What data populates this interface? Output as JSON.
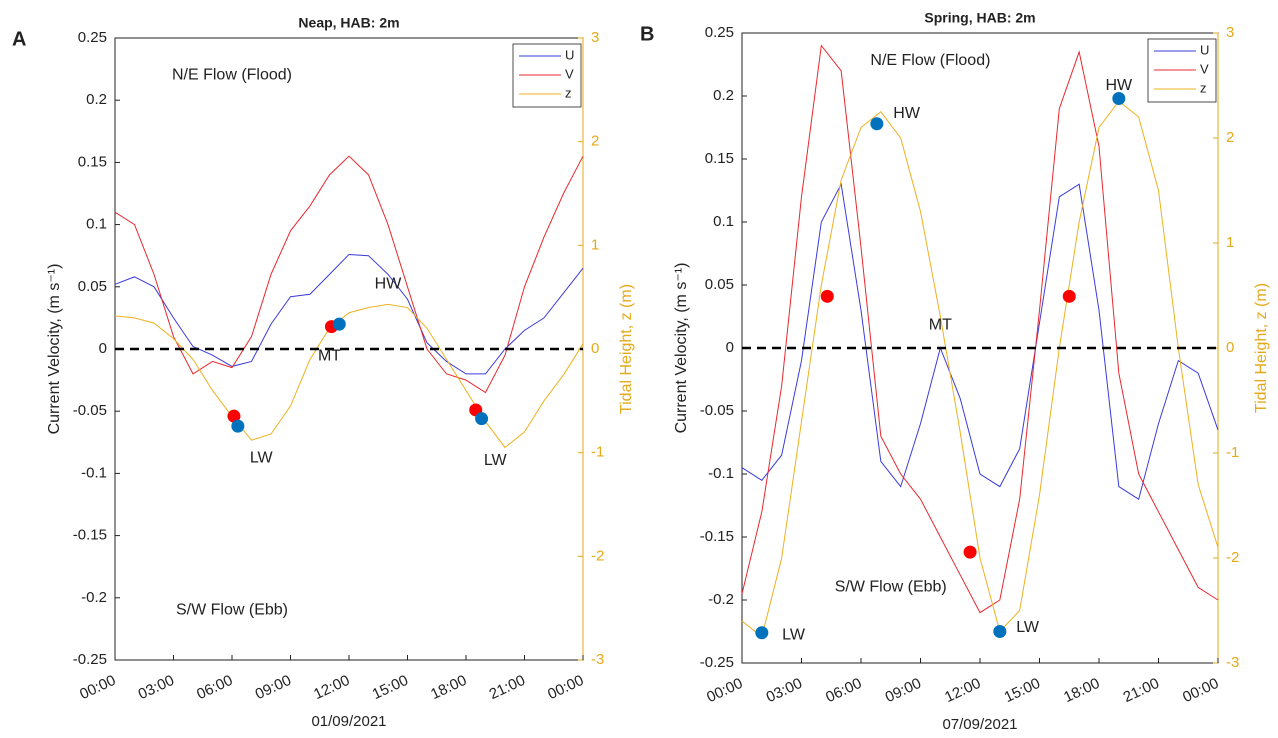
{
  "chart_data": [
    {
      "type": "line",
      "panel": "A",
      "title": "Neap, HAB: 2m",
      "xlabel": "01/09/2021",
      "ylabel": "Current Velocity, (m s⁻¹)",
      "y2label": "Tidal Height, z (m)",
      "x": [
        0,
        1,
        2,
        3,
        4,
        5,
        6,
        7,
        8,
        9,
        10,
        11,
        12,
        13,
        14,
        15,
        16,
        17,
        18,
        19,
        20,
        21,
        22,
        23,
        24
      ],
      "xlim": [
        0,
        24
      ],
      "xticks": [
        {
          "value": 0,
          "label": "00:00"
        },
        {
          "value": 3,
          "label": "03:00"
        },
        {
          "value": 6,
          "label": "06:00"
        },
        {
          "value": 9,
          "label": "09:00"
        },
        {
          "value": 12,
          "label": "12:00"
        },
        {
          "value": 15,
          "label": "15:00"
        },
        {
          "value": 18,
          "label": "18:00"
        },
        {
          "value": 21,
          "label": "21:00"
        },
        {
          "value": 24,
          "label": "00:00"
        }
      ],
      "ylim": [
        -0.25,
        0.25
      ],
      "yticks": [
        -0.25,
        -0.2,
        -0.15,
        -0.1,
        -0.05,
        0,
        0.05,
        0.1,
        0.15,
        0.2,
        0.25
      ],
      "y2lim": [
        -3,
        3
      ],
      "y2ticks": [
        -3,
        -2,
        -1,
        0,
        1,
        2,
        3
      ],
      "y2color": "#e5a919",
      "legend": "upper right",
      "zero_line": true,
      "series": [
        {
          "name": "U",
          "color": "#3b3bdc",
          "values": [
            0.052,
            0.058,
            0.05,
            0.025,
            0.002,
            -0.005,
            -0.014,
            -0.01,
            0.02,
            0.042,
            0.044,
            0.06,
            0.076,
            0.075,
            0.06,
            0.04,
            0.005,
            -0.01,
            -0.02,
            -0.02,
            0,
            0.015,
            0.025,
            0.045,
            0.065
          ]
        },
        {
          "name": "V",
          "color": "#e8282d",
          "values": [
            0.11,
            0.1,
            0.06,
            0.01,
            -0.02,
            -0.01,
            -0.015,
            0.01,
            0.06,
            0.095,
            0.115,
            0.14,
            0.155,
            0.14,
            0.1,
            0.05,
            0,
            -0.02,
            -0.025,
            -0.035,
            -0.005,
            0.05,
            0.09,
            0.125,
            0.155
          ]
        },
        {
          "name": "z",
          "color": "#edb120",
          "axis": "y2",
          "values": [
            0.32,
            0.3,
            0.25,
            0.1,
            -0.1,
            -0.4,
            -0.65,
            -0.88,
            -0.82,
            -0.55,
            -0.1,
            0.2,
            0.35,
            0.4,
            0.43,
            0.4,
            0.2,
            -0.1,
            -0.4,
            -0.7,
            -0.95,
            -0.8,
            -0.5,
            -0.25,
            0.05
          ]
        }
      ],
      "markers": [
        {
          "x": 6.1,
          "y": -0.054,
          "color": "#ff0000"
        },
        {
          "x": 6.3,
          "y": -0.062,
          "color": "#0072bd"
        },
        {
          "x": 11.1,
          "y": 0.018,
          "color": "#ff0000"
        },
        {
          "x": 11.5,
          "y": 0.02,
          "color": "#0072bd"
        },
        {
          "x": 18.5,
          "y": -0.049,
          "color": "#ff0000"
        },
        {
          "x": 18.8,
          "y": -0.056,
          "color": "#0072bd"
        }
      ],
      "annotations": [
        {
          "text": "LW",
          "x": 7.5,
          "y": -0.088
        },
        {
          "text": "MT",
          "x": 11,
          "y": -0.006
        },
        {
          "text": "HW",
          "x": 14,
          "y": 0.052
        },
        {
          "text": "LW",
          "x": 19.5,
          "y": -0.09
        },
        {
          "text": "N/E Flow (Flood)",
          "x": 6,
          "y": 0.22
        },
        {
          "text": "S/W Flow (Ebb)",
          "x": 6,
          "y": -0.21
        }
      ]
    },
    {
      "type": "line",
      "panel": "B",
      "title": "Spring, HAB: 2m",
      "xlabel": "07/09/2021",
      "ylabel": "Current Velocity, (m s⁻¹)",
      "y2label": "Tidal Height, z (m)",
      "x": [
        0,
        1,
        2,
        3,
        4,
        5,
        6,
        7,
        8,
        9,
        10,
        11,
        12,
        13,
        14,
        15,
        16,
        17,
        18,
        19,
        20,
        21,
        22,
        23,
        24
      ],
      "xlim": [
        0,
        24
      ],
      "xticks": [
        {
          "value": 0,
          "label": "00:00"
        },
        {
          "value": 3,
          "label": "03:00"
        },
        {
          "value": 6,
          "label": "06:00"
        },
        {
          "value": 9,
          "label": "09:00"
        },
        {
          "value": 12,
          "label": "12:00"
        },
        {
          "value": 15,
          "label": "15:00"
        },
        {
          "value": 18,
          "label": "18:00"
        },
        {
          "value": 21,
          "label": "21:00"
        },
        {
          "value": 24,
          "label": "00:00"
        }
      ],
      "ylim": [
        -0.25,
        0.25
      ],
      "yticks": [
        -0.25,
        -0.2,
        -0.15,
        -0.1,
        -0.05,
        0,
        0.05,
        0.1,
        0.15,
        0.2,
        0.25
      ],
      "y2lim": [
        -3,
        3
      ],
      "y2ticks": [
        -3,
        -2,
        -1,
        0,
        1,
        2,
        3
      ],
      "y2color": "#e5a919",
      "legend": "upper right",
      "zero_line": true,
      "series": [
        {
          "name": "U",
          "color": "#3b3bdc",
          "values": [
            -0.095,
            -0.105,
            -0.085,
            -0.01,
            0.1,
            0.13,
            0.03,
            -0.09,
            -0.11,
            -0.06,
            0,
            -0.04,
            -0.1,
            -0.11,
            -0.08,
            0.02,
            0.12,
            0.13,
            0.03,
            -0.11,
            -0.12,
            -0.06,
            -0.01,
            -0.02,
            -0.065
          ]
        },
        {
          "name": "V",
          "color": "#e8282d",
          "values": [
            -0.195,
            -0.13,
            -0.03,
            0.12,
            0.24,
            0.22,
            0.08,
            -0.07,
            -0.1,
            -0.12,
            -0.15,
            -0.18,
            -0.21,
            -0.2,
            -0.12,
            0.03,
            0.19,
            0.235,
            0.16,
            -0.02,
            -0.1,
            -0.13,
            -0.16,
            -0.19,
            -0.2
          ]
        },
        {
          "name": "z",
          "color": "#edb120",
          "axis": "y2",
          "values": [
            -2.6,
            -2.75,
            -2,
            -0.7,
            0.6,
            1.6,
            2.1,
            2.25,
            2,
            1.3,
            0.3,
            -0.8,
            -2,
            -2.7,
            -2.5,
            -1.4,
            0,
            1.2,
            2.1,
            2.35,
            2.2,
            1.5,
            0,
            -1.3,
            -1.9
          ]
        }
      ],
      "markers": [
        {
          "x": 1,
          "y": -0.226,
          "color": "#0072bd"
        },
        {
          "x": 4.3,
          "y": 0.041,
          "color": "#ff0000"
        },
        {
          "x": 6.8,
          "y": 0.178,
          "color": "#0072bd"
        },
        {
          "x": 11.5,
          "y": -0.162,
          "color": "#ff0000"
        },
        {
          "x": 13,
          "y": -0.225,
          "color": "#0072bd"
        },
        {
          "x": 16.5,
          "y": 0.041,
          "color": "#ff0000"
        },
        {
          "x": 19,
          "y": 0.198,
          "color": "#0072bd"
        }
      ],
      "annotations": [
        {
          "text": "LW",
          "x": 2.6,
          "y": -0.228
        },
        {
          "text": "HW",
          "x": 8.3,
          "y": 0.186
        },
        {
          "text": "MT",
          "x": 10,
          "y": 0.018
        },
        {
          "text": "LW",
          "x": 14.4,
          "y": -0.222
        },
        {
          "text": "HW",
          "x": 19,
          "y": 0.208
        },
        {
          "text": "N/E Flow (Flood)",
          "x": 9.5,
          "y": 0.228
        },
        {
          "text": "S/W Flow (Ebb)",
          "x": 7.5,
          "y": -0.19
        }
      ]
    }
  ]
}
